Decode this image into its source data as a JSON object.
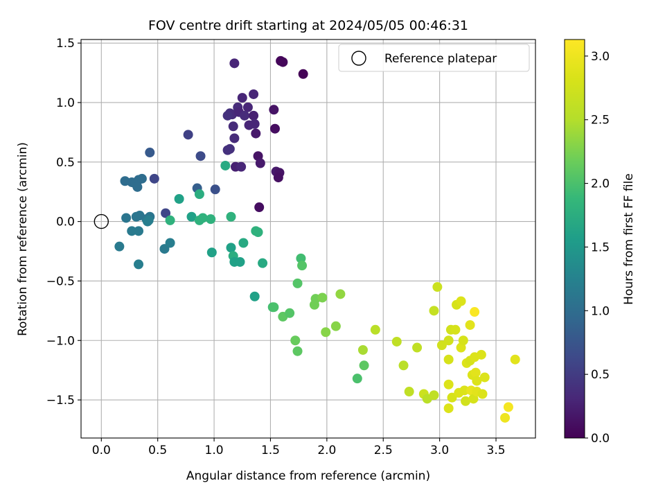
{
  "chart_data": {
    "type": "scatter",
    "title": "FOV centre drift starting at 2024/05/05 00:46:31",
    "xlabel": "Angular distance from reference (arcmin)",
    "ylabel": "Rotation from reference (arcmin)",
    "xlim": [
      -0.18,
      3.85
    ],
    "ylim": [
      -1.82,
      1.53
    ],
    "xticks": [
      0.0,
      0.5,
      1.0,
      1.5,
      2.0,
      2.5,
      3.0,
      3.5
    ],
    "xtick_labels": [
      "0.0",
      "0.5",
      "1.0",
      "1.5",
      "2.0",
      "2.5",
      "3.0",
      "3.5"
    ],
    "yticks": [
      -1.5,
      -1.0,
      -0.5,
      0.0,
      0.5,
      1.0,
      1.5
    ],
    "ytick_labels": [
      "−1.5",
      "−1.0",
      "−0.5",
      "0.0",
      "0.5",
      "1.0",
      "1.5"
    ],
    "grid": true,
    "legend": {
      "placement": "upper right",
      "entries": [
        "Reference platepar"
      ]
    },
    "reference_point": {
      "x": 0.0,
      "y": 0.0
    },
    "colorbar": {
      "label": "Hours from first FF file",
      "colormap": "viridis",
      "range": [
        0.0,
        3.13
      ],
      "ticks": [
        0.0,
        0.5,
        1.0,
        1.5,
        2.0,
        2.5,
        3.0
      ],
      "tick_labels": [
        "0.0",
        "0.5",
        "1.0",
        "1.5",
        "2.0",
        "2.5",
        "3.0"
      ]
    },
    "points": [
      {
        "x": 1.59,
        "y": 1.35,
        "h": 0.05
      },
      {
        "x": 1.61,
        "y": 1.34,
        "h": 0.05
      },
      {
        "x": 1.79,
        "y": 1.24,
        "h": 0.02
      },
      {
        "x": 1.18,
        "y": 1.33,
        "h": 0.3
      },
      {
        "x": 1.35,
        "y": 1.07,
        "h": 0.3
      },
      {
        "x": 1.25,
        "y": 1.04,
        "h": 0.3
      },
      {
        "x": 1.53,
        "y": 0.94,
        "h": 0.15
      },
      {
        "x": 1.21,
        "y": 0.96,
        "h": 0.35
      },
      {
        "x": 1.3,
        "y": 0.96,
        "h": 0.3
      },
      {
        "x": 1.14,
        "y": 0.91,
        "h": 0.4
      },
      {
        "x": 1.16,
        "y": 0.9,
        "h": 0.35
      },
      {
        "x": 1.22,
        "y": 0.92,
        "h": 0.3
      },
      {
        "x": 1.12,
        "y": 0.89,
        "h": 0.4
      },
      {
        "x": 1.27,
        "y": 0.89,
        "h": 0.35
      },
      {
        "x": 1.35,
        "y": 0.89,
        "h": 0.25
      },
      {
        "x": 1.17,
        "y": 0.8,
        "h": 0.35
      },
      {
        "x": 1.31,
        "y": 0.81,
        "h": 0.3
      },
      {
        "x": 1.36,
        "y": 0.82,
        "h": 0.3
      },
      {
        "x": 1.54,
        "y": 0.78,
        "h": 0.1
      },
      {
        "x": 1.37,
        "y": 0.74,
        "h": 0.2
      },
      {
        "x": 1.18,
        "y": 0.7,
        "h": 0.35
      },
      {
        "x": 1.12,
        "y": 0.6,
        "h": 0.4
      },
      {
        "x": 1.14,
        "y": 0.61,
        "h": 0.4
      },
      {
        "x": 1.39,
        "y": 0.55,
        "h": 0.15
      },
      {
        "x": 1.41,
        "y": 0.49,
        "h": 0.2
      },
      {
        "x": 1.19,
        "y": 0.46,
        "h": 0.25
      },
      {
        "x": 1.24,
        "y": 0.46,
        "h": 0.3
      },
      {
        "x": 1.55,
        "y": 0.42,
        "h": 0.2
      },
      {
        "x": 1.58,
        "y": 0.41,
        "h": 0.15
      },
      {
        "x": 1.57,
        "y": 0.37,
        "h": 0.12
      },
      {
        "x": 1.4,
        "y": 0.12,
        "h": 0.1
      },
      {
        "x": 0.77,
        "y": 0.73,
        "h": 0.55
      },
      {
        "x": 0.43,
        "y": 0.58,
        "h": 0.8
      },
      {
        "x": 0.88,
        "y": 0.55,
        "h": 0.65
      },
      {
        "x": 0.47,
        "y": 0.36,
        "h": 0.6
      },
      {
        "x": 0.21,
        "y": 0.34,
        "h": 1.0
      },
      {
        "x": 0.27,
        "y": 0.33,
        "h": 1.0
      },
      {
        "x": 0.3,
        "y": 0.32,
        "h": 1.0
      },
      {
        "x": 0.33,
        "y": 0.35,
        "h": 1.0
      },
      {
        "x": 0.36,
        "y": 0.36,
        "h": 1.0
      },
      {
        "x": 0.32,
        "y": 0.29,
        "h": 1.0
      },
      {
        "x": 0.85,
        "y": 0.28,
        "h": 0.85
      },
      {
        "x": 1.01,
        "y": 0.27,
        "h": 0.7
      },
      {
        "x": 0.57,
        "y": 0.07,
        "h": 0.6
      },
      {
        "x": 0.22,
        "y": 0.03,
        "h": 1.1
      },
      {
        "x": 0.31,
        "y": 0.04,
        "h": 1.1
      },
      {
        "x": 0.34,
        "y": 0.05,
        "h": 1.1
      },
      {
        "x": 0.4,
        "y": 0.02,
        "h": 1.1
      },
      {
        "x": 0.43,
        "y": 0.04,
        "h": 1.1
      },
      {
        "x": 0.41,
        "y": 0.0,
        "h": 1.2
      },
      {
        "x": 0.42,
        "y": 0.01,
        "h": 1.2
      },
      {
        "x": 0.27,
        "y": -0.08,
        "h": 1.15
      },
      {
        "x": 0.33,
        "y": -0.08,
        "h": 1.15
      },
      {
        "x": 0.16,
        "y": -0.21,
        "h": 1.15
      },
      {
        "x": 0.56,
        "y": -0.23,
        "h": 1.15
      },
      {
        "x": 0.61,
        "y": -0.18,
        "h": 1.2
      },
      {
        "x": 0.33,
        "y": -0.36,
        "h": 1.2
      },
      {
        "x": 1.1,
        "y": 0.47,
        "h": 1.7
      },
      {
        "x": 0.69,
        "y": 0.19,
        "h": 1.6
      },
      {
        "x": 0.87,
        "y": 0.23,
        "h": 1.75
      },
      {
        "x": 0.61,
        "y": 0.01,
        "h": 1.8
      },
      {
        "x": 0.8,
        "y": 0.04,
        "h": 1.6
      },
      {
        "x": 0.87,
        "y": 0.01,
        "h": 1.8
      },
      {
        "x": 0.9,
        "y": 0.03,
        "h": 1.8
      },
      {
        "x": 0.97,
        "y": 0.02,
        "h": 1.8
      },
      {
        "x": 1.15,
        "y": 0.04,
        "h": 1.8
      },
      {
        "x": 1.37,
        "y": -0.08,
        "h": 1.8
      },
      {
        "x": 1.39,
        "y": -0.09,
        "h": 1.8
      },
      {
        "x": 0.98,
        "y": -0.26,
        "h": 1.6
      },
      {
        "x": 1.15,
        "y": -0.22,
        "h": 1.6
      },
      {
        "x": 1.17,
        "y": -0.29,
        "h": 1.75
      },
      {
        "x": 1.26,
        "y": -0.18,
        "h": 1.7
      },
      {
        "x": 1.18,
        "y": -0.34,
        "h": 1.6
      },
      {
        "x": 1.23,
        "y": -0.34,
        "h": 1.6
      },
      {
        "x": 1.43,
        "y": -0.35,
        "h": 1.7
      },
      {
        "x": 1.36,
        "y": -0.63,
        "h": 1.6
      },
      {
        "x": 1.77,
        "y": -0.31,
        "h": 1.95
      },
      {
        "x": 1.78,
        "y": -0.37,
        "h": 2.05
      },
      {
        "x": 1.74,
        "y": -0.52,
        "h": 2.05
      },
      {
        "x": 1.52,
        "y": -0.72,
        "h": 1.95
      },
      {
        "x": 1.53,
        "y": -0.72,
        "h": 2.0
      },
      {
        "x": 1.61,
        "y": -0.8,
        "h": 2.1
      },
      {
        "x": 1.67,
        "y": -0.77,
        "h": 2.05
      },
      {
        "x": 1.72,
        "y": -1.0,
        "h": 2.15
      },
      {
        "x": 1.74,
        "y": -1.09,
        "h": 2.1
      },
      {
        "x": 1.89,
        "y": -0.7,
        "h": 2.2
      },
      {
        "x": 1.9,
        "y": -0.65,
        "h": 2.2
      },
      {
        "x": 1.96,
        "y": -0.64,
        "h": 2.25
      },
      {
        "x": 1.99,
        "y": -0.93,
        "h": 2.3
      },
      {
        "x": 2.08,
        "y": -0.88,
        "h": 2.3
      },
      {
        "x": 2.12,
        "y": -0.61,
        "h": 2.35
      },
      {
        "x": 2.32,
        "y": -1.08,
        "h": 2.45
      },
      {
        "x": 2.33,
        "y": -1.21,
        "h": 2.1
      },
      {
        "x": 2.27,
        "y": -1.32,
        "h": 2.0
      },
      {
        "x": 2.43,
        "y": -0.91,
        "h": 2.55
      },
      {
        "x": 2.62,
        "y": -1.01,
        "h": 2.6
      },
      {
        "x": 2.68,
        "y": -1.21,
        "h": 2.55
      },
      {
        "x": 2.73,
        "y": -1.43,
        "h": 2.6
      },
      {
        "x": 2.8,
        "y": -1.06,
        "h": 2.6
      },
      {
        "x": 2.86,
        "y": -1.45,
        "h": 2.7
      },
      {
        "x": 2.89,
        "y": -1.49,
        "h": 2.55
      },
      {
        "x": 2.95,
        "y": -1.46,
        "h": 2.6
      },
      {
        "x": 2.95,
        "y": -0.75,
        "h": 2.65
      },
      {
        "x": 2.98,
        "y": -0.55,
        "h": 2.7
      },
      {
        "x": 3.02,
        "y": -1.04,
        "h": 2.75
      },
      {
        "x": 3.08,
        "y": -1.0,
        "h": 2.75
      },
      {
        "x": 3.08,
        "y": -1.16,
        "h": 2.8
      },
      {
        "x": 3.08,
        "y": -1.37,
        "h": 2.85
      },
      {
        "x": 3.08,
        "y": -1.57,
        "h": 2.85
      },
      {
        "x": 3.1,
        "y": -0.91,
        "h": 2.75
      },
      {
        "x": 3.11,
        "y": -1.48,
        "h": 2.8
      },
      {
        "x": 3.14,
        "y": -0.91,
        "h": 2.8
      },
      {
        "x": 3.15,
        "y": -0.7,
        "h": 2.8
      },
      {
        "x": 3.17,
        "y": -1.44,
        "h": 2.85
      },
      {
        "x": 3.19,
        "y": -0.67,
        "h": 2.85
      },
      {
        "x": 3.19,
        "y": -1.06,
        "h": 2.85
      },
      {
        "x": 3.21,
        "y": -1.0,
        "h": 2.8
      },
      {
        "x": 3.22,
        "y": -1.42,
        "h": 2.85
      },
      {
        "x": 3.23,
        "y": -1.51,
        "h": 2.75
      },
      {
        "x": 3.24,
        "y": -1.19,
        "h": 2.85
      },
      {
        "x": 3.27,
        "y": -0.87,
        "h": 2.9
      },
      {
        "x": 3.27,
        "y": -1.17,
        "h": 2.8
      },
      {
        "x": 3.28,
        "y": -1.42,
        "h": 2.95
      },
      {
        "x": 3.29,
        "y": -1.29,
        "h": 2.85
      },
      {
        "x": 3.3,
        "y": -1.49,
        "h": 2.8
      },
      {
        "x": 3.31,
        "y": -1.14,
        "h": 2.85
      },
      {
        "x": 3.31,
        "y": -0.76,
        "h": 3.1
      },
      {
        "x": 3.32,
        "y": -1.27,
        "h": 2.9
      },
      {
        "x": 3.33,
        "y": -1.34,
        "h": 2.85
      },
      {
        "x": 3.33,
        "y": -1.43,
        "h": 2.9
      },
      {
        "x": 3.37,
        "y": -1.12,
        "h": 2.85
      },
      {
        "x": 3.38,
        "y": -1.45,
        "h": 2.85
      },
      {
        "x": 3.4,
        "y": -1.31,
        "h": 2.85
      },
      {
        "x": 3.58,
        "y": -1.65,
        "h": 3.0
      },
      {
        "x": 3.61,
        "y": -1.56,
        "h": 3.05
      },
      {
        "x": 3.67,
        "y": -1.16,
        "h": 2.9
      }
    ]
  }
}
